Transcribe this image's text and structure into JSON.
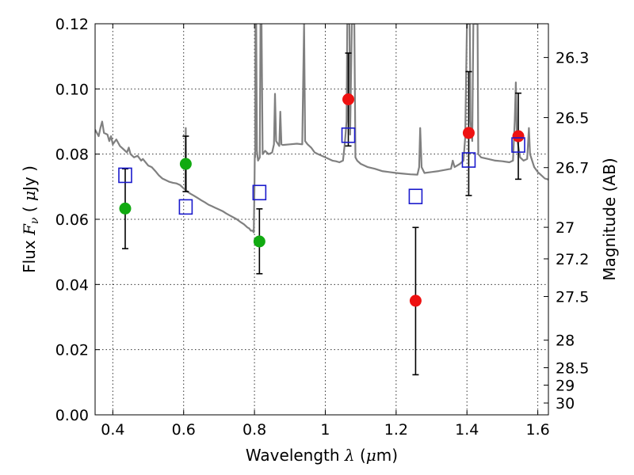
{
  "chart_data": {
    "type": "scatter",
    "xlabel": "Wavelength λ (μm)",
    "ylabel": "Flux F_ν (μJy)",
    "ylabel_right": "Magnitude (AB)",
    "xlim": [
      0.35,
      1.63
    ],
    "ylim": [
      0.0,
      0.12
    ],
    "grid": true,
    "x_ticks": [
      0.4,
      0.6,
      0.8,
      1.0,
      1.2,
      1.4,
      1.6
    ],
    "x_tick_labels": [
      "0.4",
      "0.6",
      "0.8",
      "1",
      "1.2",
      "1.4",
      "1.6"
    ],
    "y_ticks": [
      0.0,
      0.02,
      0.04,
      0.06,
      0.08,
      0.1,
      0.12
    ],
    "y_tick_labels": [
      "0.00",
      "0.02",
      "0.04",
      "0.06",
      "0.08",
      "0.10",
      "0.12"
    ],
    "right_ticks": [
      {
        "label": "26.3",
        "mag": 26.3
      },
      {
        "label": "26.5",
        "mag": 26.5
      },
      {
        "label": "26.7",
        "mag": 26.7
      },
      {
        "label": "27",
        "mag": 27.0
      },
      {
        "label": "27.2",
        "mag": 27.2
      },
      {
        "label": "27.5",
        "mag": 27.5
      },
      {
        "label": "28",
        "mag": 28.0
      },
      {
        "label": "28.5",
        "mag": 28.5
      },
      {
        "label": "29",
        "mag": 29.0
      },
      {
        "label": "30",
        "mag": 30.0
      }
    ],
    "colors": {
      "spectrum": "#808080",
      "green": "#11aa11",
      "red": "#ee1111",
      "model_box": "#1a1acc",
      "errorbar": "#000000"
    },
    "series": [
      {
        "marker": "circle-green",
        "points": [
          {
            "x": 0.435,
            "y": 0.0633,
            "err_low": 0.051,
            "err_high": 0.0755
          },
          {
            "x": 0.606,
            "y": 0.077,
            "err_low": 0.0685,
            "err_high": 0.0855
          },
          {
            "x": 0.814,
            "y": 0.0532,
            "err_low": 0.0433,
            "err_high": 0.0632
          }
        ]
      },
      {
        "marker": "circle-red",
        "points": [
          {
            "x": 1.065,
            "y": 0.0968,
            "err_low": 0.0825,
            "err_high": 0.111
          },
          {
            "x": 1.255,
            "y": 0.035,
            "err_low": 0.0123,
            "err_high": 0.0575
          },
          {
            "x": 1.405,
            "y": 0.0865,
            "err_low": 0.0673,
            "err_high": 0.1053
          },
          {
            "x": 1.545,
            "y": 0.0855,
            "err_low": 0.0723,
            "err_high": 0.0987
          }
        ]
      },
      {
        "marker": "square-open-blue",
        "points": [
          {
            "x": 0.435,
            "y": 0.0735
          },
          {
            "x": 0.606,
            "y": 0.0638
          },
          {
            "x": 0.814,
            "y": 0.0682
          },
          {
            "x": 1.065,
            "y": 0.0858
          },
          {
            "x": 1.255,
            "y": 0.067
          },
          {
            "x": 1.405,
            "y": 0.0782
          },
          {
            "x": 1.545,
            "y": 0.0828
          }
        ]
      }
    ],
    "spectrum": [
      [
        0.35,
        0.0875
      ],
      [
        0.36,
        0.0855
      ],
      [
        0.365,
        0.088
      ],
      [
        0.37,
        0.09
      ],
      [
        0.375,
        0.0865
      ],
      [
        0.385,
        0.086
      ],
      [
        0.39,
        0.084
      ],
      [
        0.395,
        0.0855
      ],
      [
        0.4,
        0.083
      ],
      [
        0.41,
        0.0845
      ],
      [
        0.42,
        0.0825
      ],
      [
        0.43,
        0.0815
      ],
      [
        0.44,
        0.0805
      ],
      [
        0.445,
        0.082
      ],
      [
        0.45,
        0.08
      ],
      [
        0.46,
        0.079
      ],
      [
        0.47,
        0.0795
      ],
      [
        0.48,
        0.078
      ],
      [
        0.485,
        0.0785
      ],
      [
        0.49,
        0.0778
      ],
      [
        0.5,
        0.0765
      ],
      [
        0.51,
        0.076
      ],
      [
        0.52,
        0.0748
      ],
      [
        0.53,
        0.0735
      ],
      [
        0.54,
        0.0725
      ],
      [
        0.55,
        0.072
      ],
      [
        0.56,
        0.0715
      ],
      [
        0.57,
        0.0712
      ],
      [
        0.58,
        0.071
      ],
      [
        0.59,
        0.0705
      ],
      [
        0.6,
        0.0695
      ],
      [
        0.605,
        0.069
      ],
      [
        0.606,
        0.088
      ],
      [
        0.607,
        0.069
      ],
      [
        0.61,
        0.0685
      ],
      [
        0.62,
        0.0678
      ],
      [
        0.63,
        0.0672
      ],
      [
        0.64,
        0.0665
      ],
      [
        0.65,
        0.0658
      ],
      [
        0.66,
        0.0652
      ],
      [
        0.67,
        0.0645
      ],
      [
        0.68,
        0.064
      ],
      [
        0.69,
        0.0635
      ],
      [
        0.7,
        0.063
      ],
      [
        0.71,
        0.0625
      ],
      [
        0.72,
        0.0618
      ],
      [
        0.73,
        0.0612
      ],
      [
        0.74,
        0.0606
      ],
      [
        0.75,
        0.06
      ],
      [
        0.76,
        0.0592
      ],
      [
        0.77,
        0.0585
      ],
      [
        0.78,
        0.0575
      ],
      [
        0.785,
        0.0572
      ],
      [
        0.79,
        0.0565
      ],
      [
        0.795,
        0.0565
      ],
      [
        0.798,
        0.056
      ],
      [
        0.8,
        0.07
      ],
      [
        0.801,
        0.08
      ],
      [
        0.802,
        0.079
      ],
      [
        0.803,
        0.12
      ],
      [
        0.805,
        0.12
      ],
      [
        0.807,
        0.081
      ],
      [
        0.81,
        0.078
      ],
      [
        0.815,
        0.079
      ],
      [
        0.817,
        0.12
      ],
      [
        0.82,
        0.12
      ],
      [
        0.823,
        0.08
      ],
      [
        0.83,
        0.081
      ],
      [
        0.84,
        0.08
      ],
      [
        0.85,
        0.0805
      ],
      [
        0.855,
        0.083
      ],
      [
        0.858,
        0.0985
      ],
      [
        0.861,
        0.084
      ],
      [
        0.87,
        0.0825
      ],
      [
        0.873,
        0.093
      ],
      [
        0.876,
        0.083
      ],
      [
        0.88,
        0.0828
      ],
      [
        0.9,
        0.083
      ],
      [
        0.92,
        0.0832
      ],
      [
        0.935,
        0.083
      ],
      [
        0.937,
        0.098
      ],
      [
        0.94,
        0.12
      ],
      [
        0.943,
        0.084
      ],
      [
        0.95,
        0.083
      ],
      [
        0.96,
        0.082
      ],
      [
        0.97,
        0.0805
      ],
      [
        0.98,
        0.08
      ],
      [
        0.99,
        0.0795
      ],
      [
        1.0,
        0.079
      ],
      [
        1.01,
        0.0785
      ],
      [
        1.02,
        0.078
      ],
      [
        1.03,
        0.0778
      ],
      [
        1.04,
        0.0775
      ],
      [
        1.05,
        0.078
      ],
      [
        1.055,
        0.083
      ],
      [
        1.06,
        0.09
      ],
      [
        1.062,
        0.12
      ],
      [
        1.068,
        0.12
      ],
      [
        1.07,
        0.086
      ],
      [
        1.075,
        0.12
      ],
      [
        1.082,
        0.12
      ],
      [
        1.085,
        0.079
      ],
      [
        1.09,
        0.078
      ],
      [
        1.1,
        0.077
      ],
      [
        1.12,
        0.076
      ],
      [
        1.14,
        0.0755
      ],
      [
        1.16,
        0.0748
      ],
      [
        1.18,
        0.0745
      ],
      [
        1.2,
        0.0742
      ],
      [
        1.22,
        0.074
      ],
      [
        1.24,
        0.0738
      ],
      [
        1.26,
        0.0737
      ],
      [
        1.265,
        0.076
      ],
      [
        1.268,
        0.088
      ],
      [
        1.272,
        0.076
      ],
      [
        1.28,
        0.0742
      ],
      [
        1.3,
        0.0745
      ],
      [
        1.32,
        0.0748
      ],
      [
        1.34,
        0.0752
      ],
      [
        1.355,
        0.0755
      ],
      [
        1.36,
        0.078
      ],
      [
        1.365,
        0.076
      ],
      [
        1.38,
        0.077
      ],
      [
        1.39,
        0.078
      ],
      [
        1.395,
        0.085
      ],
      [
        1.4,
        0.12
      ],
      [
        1.408,
        0.12
      ],
      [
        1.41,
        0.09
      ],
      [
        1.415,
        0.084
      ],
      [
        1.418,
        0.12
      ],
      [
        1.43,
        0.12
      ],
      [
        1.432,
        0.08
      ],
      [
        1.44,
        0.079
      ],
      [
        1.46,
        0.0785
      ],
      [
        1.48,
        0.078
      ],
      [
        1.5,
        0.0778
      ],
      [
        1.52,
        0.0775
      ],
      [
        1.53,
        0.078
      ],
      [
        1.535,
        0.09
      ],
      [
        1.538,
        0.102
      ],
      [
        1.541,
        0.085
      ],
      [
        1.55,
        0.079
      ],
      [
        1.56,
        0.078
      ],
      [
        1.57,
        0.0785
      ],
      [
        1.575,
        0.088
      ],
      [
        1.578,
        0.08
      ],
      [
        1.59,
        0.076
      ],
      [
        1.6,
        0.0745
      ],
      [
        1.61,
        0.0735
      ],
      [
        1.62,
        0.0725
      ],
      [
        1.63,
        0.0722
      ]
    ]
  }
}
